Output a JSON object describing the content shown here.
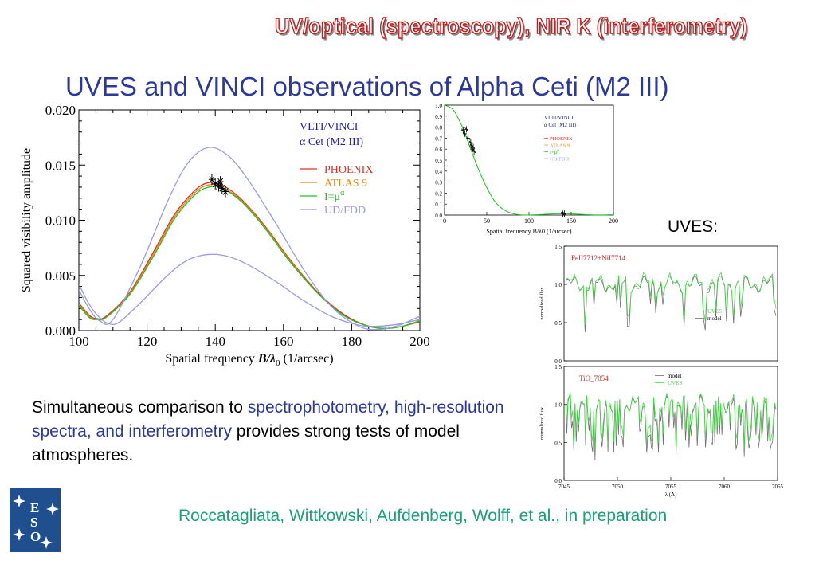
{
  "banner": "UV/optical (spectroscopy), NIR K (interferometry)",
  "title": "UVES and VINCI observations of Alpha Ceti (M2 III)",
  "uves_label": "UVES:",
  "body": {
    "part1": "Simultaneous comparison to ",
    "part2": "spectrophotometry, high-resolution spectra, and interferometry",
    "part3": " provides strong tests of model atmospheres."
  },
  "credit": "Roccatagliata, Wittkowski, Aufdenberg, Wolff, et al., in preparation",
  "logo": {
    "text": "ESO",
    "icon": "eso-logo"
  },
  "colors": {
    "phoenix": "#e03020",
    "atlas": "#f08a10",
    "ipower": "#20c020",
    "udfdd": "#9a9ae0",
    "uves_green": "#40e040",
    "model_gray": "#707070"
  },
  "chart_data": [
    {
      "type": "line",
      "legend_title": "VLTI/VINCI",
      "legend_subtitle": "α  Cet (M2 III)",
      "xlabel_main": "Spatial frequency ",
      "xlabel_var": "B/λ",
      "xlabel_sub": "0",
      "xlabel_unit": " (1/arcsec)",
      "ylabel": "Squared visibility amplitude",
      "xlim": [
        100,
        200
      ],
      "ylim": [
        0,
        0.02
      ],
      "xticks": [
        "100",
        "120",
        "140",
        "160",
        "180",
        "200"
      ],
      "yticks": [
        "0.000",
        "0.005",
        "0.010",
        "0.015",
        "0.020"
      ],
      "legend": "top-right",
      "series": [
        {
          "name": "PHOENIX",
          "points": [
            [
              100,
              0.0025
            ],
            [
              103,
              0.0014
            ],
            [
              105,
              0.0011
            ],
            [
              108,
              0.0013
            ],
            [
              115,
              0.0035
            ],
            [
              122,
              0.0072
            ],
            [
              128,
              0.0105
            ],
            [
              134,
              0.0127
            ],
            [
              138,
              0.0134
            ],
            [
              142,
              0.0132
            ],
            [
              148,
              0.0118
            ],
            [
              155,
              0.0093
            ],
            [
              162,
              0.0064
            ],
            [
              170,
              0.0035
            ],
            [
              178,
              0.0014
            ],
            [
              185,
              0.0004
            ],
            [
              190,
              0.0002
            ],
            [
              195,
              0.0004
            ],
            [
              200,
              0.0008
            ]
          ]
        },
        {
          "name": "ATLAS  9",
          "points": [
            [
              100,
              0.0024
            ],
            [
              103,
              0.0013
            ],
            [
              105,
              0.001
            ],
            [
              108,
              0.0012
            ],
            [
              115,
              0.0034
            ],
            [
              122,
              0.007
            ],
            [
              128,
              0.0103
            ],
            [
              134,
              0.0125
            ],
            [
              138,
              0.0132
            ],
            [
              142,
              0.013
            ],
            [
              148,
              0.0117
            ],
            [
              155,
              0.0092
            ],
            [
              162,
              0.0063
            ],
            [
              170,
              0.0034
            ],
            [
              178,
              0.0013
            ],
            [
              185,
              0.0004
            ],
            [
              190,
              0.0002
            ],
            [
              195,
              0.0004
            ],
            [
              200,
              0.0009
            ]
          ]
        },
        {
          "name": "I=μ^α",
          "points": [
            [
              100,
              0.0023
            ],
            [
              103,
              0.0012
            ],
            [
              105,
              0.001
            ],
            [
              108,
              0.0012
            ],
            [
              115,
              0.0033
            ],
            [
              122,
              0.0068
            ],
            [
              128,
              0.0101
            ],
            [
              134,
              0.0123
            ],
            [
              138,
              0.013
            ],
            [
              142,
              0.0129
            ],
            [
              148,
              0.0116
            ],
            [
              155,
              0.0091
            ],
            [
              162,
              0.0062
            ],
            [
              170,
              0.0034
            ],
            [
              178,
              0.0013
            ],
            [
              185,
              0.0004
            ],
            [
              190,
              0.0002
            ],
            [
              195,
              0.0004
            ],
            [
              200,
              0.0009
            ]
          ]
        },
        {
          "name": "UD/FDD",
          "points": [
            [
              100,
              0.0037
            ],
            [
              103,
              0.002
            ],
            [
              106,
              0.0009
            ],
            [
              110,
              0.001
            ],
            [
              118,
              0.0058
            ],
            [
              126,
              0.0117
            ],
            [
              132,
              0.0152
            ],
            [
              138,
              0.0166
            ],
            [
              144,
              0.0158
            ],
            [
              150,
              0.0135
            ],
            [
              158,
              0.0096
            ],
            [
              166,
              0.0055
            ],
            [
              174,
              0.0022
            ],
            [
              182,
              0.0004
            ],
            [
              188,
              0.0001
            ],
            [
              194,
              0.0005
            ],
            [
              200,
              0.0013
            ]
          ]
        },
        {
          "name": "UD/FDD (lower)",
          "points": [
            [
              100,
              0.0042
            ],
            [
              103,
              0.0024
            ],
            [
              106,
              0.0012
            ],
            [
              109,
              0.0006
            ],
            [
              112,
              0.0008
            ],
            [
              118,
              0.0025
            ],
            [
              126,
              0.005
            ],
            [
              132,
              0.0064
            ],
            [
              138,
              0.0069
            ],
            [
              144,
              0.0067
            ],
            [
              150,
              0.0059
            ],
            [
              158,
              0.0044
            ],
            [
              166,
              0.0027
            ],
            [
              174,
              0.0013
            ],
            [
              182,
              0.0005
            ],
            [
              188,
              0.0004
            ],
            [
              194,
              0.0006
            ],
            [
              200,
              0.001
            ]
          ]
        }
      ],
      "observations": [
        [
          139,
          0.0137
        ],
        [
          140,
          0.0133
        ],
        [
          141,
          0.0131
        ],
        [
          142,
          0.0129
        ],
        [
          143,
          0.0126
        ],
        [
          141.5,
          0.0135
        ]
      ]
    },
    {
      "type": "line",
      "legend_title": "VLTI/VINCI",
      "legend_subtitle": "α Cet (M2 III)",
      "legend": [
        "PHOENIX",
        "ATLAS  9",
        "I=μ^α",
        "UD/FDD"
      ],
      "xlabel": "Spatial frequency B/λ0 (1/arcsec)",
      "xlim": [
        0,
        200
      ],
      "ylim": [
        0,
        1.0
      ],
      "xticks": [
        "0",
        "50",
        "100",
        "150",
        "200"
      ],
      "yticks": [
        "0.0",
        "0.1",
        "0.2",
        "0.3",
        "0.4",
        "0.5",
        "0.6",
        "0.7",
        "0.8",
        "0.9",
        "1.0"
      ],
      "series": [
        {
          "name": "model",
          "points": [
            [
              0,
              1.0
            ],
            [
              10,
              0.96
            ],
            [
              20,
              0.82
            ],
            [
              30,
              0.62
            ],
            [
              40,
              0.42
            ],
            [
              50,
              0.25
            ],
            [
              60,
              0.12
            ],
            [
              70,
              0.05
            ],
            [
              80,
              0.015
            ],
            [
              90,
              0.002
            ],
            [
              100,
              0.0
            ],
            [
              115,
              0.005
            ],
            [
              130,
              0.012
            ],
            [
              140,
              0.013
            ],
            [
              150,
              0.011
            ],
            [
              165,
              0.005
            ],
            [
              180,
              0.001
            ],
            [
              200,
              0.003
            ]
          ]
        }
      ],
      "observations": [
        [
          22,
          0.77
        ],
        [
          24,
          0.74
        ],
        [
          26,
          0.78
        ],
        [
          28,
          0.7
        ],
        [
          31,
          0.66
        ],
        [
          32,
          0.63
        ],
        [
          33,
          0.6
        ],
        [
          34,
          0.62
        ],
        [
          35,
          0.58
        ],
        [
          140,
          0.012
        ],
        [
          142,
          0.013
        ]
      ]
    },
    {
      "type": "line",
      "title": "FeII7712+NiI7714",
      "ylabel": "normalized flux",
      "ylim": [
        0,
        1.5
      ],
      "yticks": [
        "0.0",
        "0.5",
        "1.0",
        "1.5"
      ],
      "legend": [
        "UVES",
        "model"
      ]
    },
    {
      "type": "line",
      "title": "TiO_7054",
      "ylabel": "normalized flux",
      "xlabel": "λ (A)",
      "xlim": [
        7045,
        7065
      ],
      "ylim": [
        0,
        1.5
      ],
      "xticks": [
        "7045",
        "7050",
        "7055",
        "7060",
        "7065"
      ],
      "yticks": [
        "0.0",
        "0.5",
        "1.0",
        "1.5"
      ],
      "legend": [
        "model",
        "UVES"
      ]
    }
  ]
}
